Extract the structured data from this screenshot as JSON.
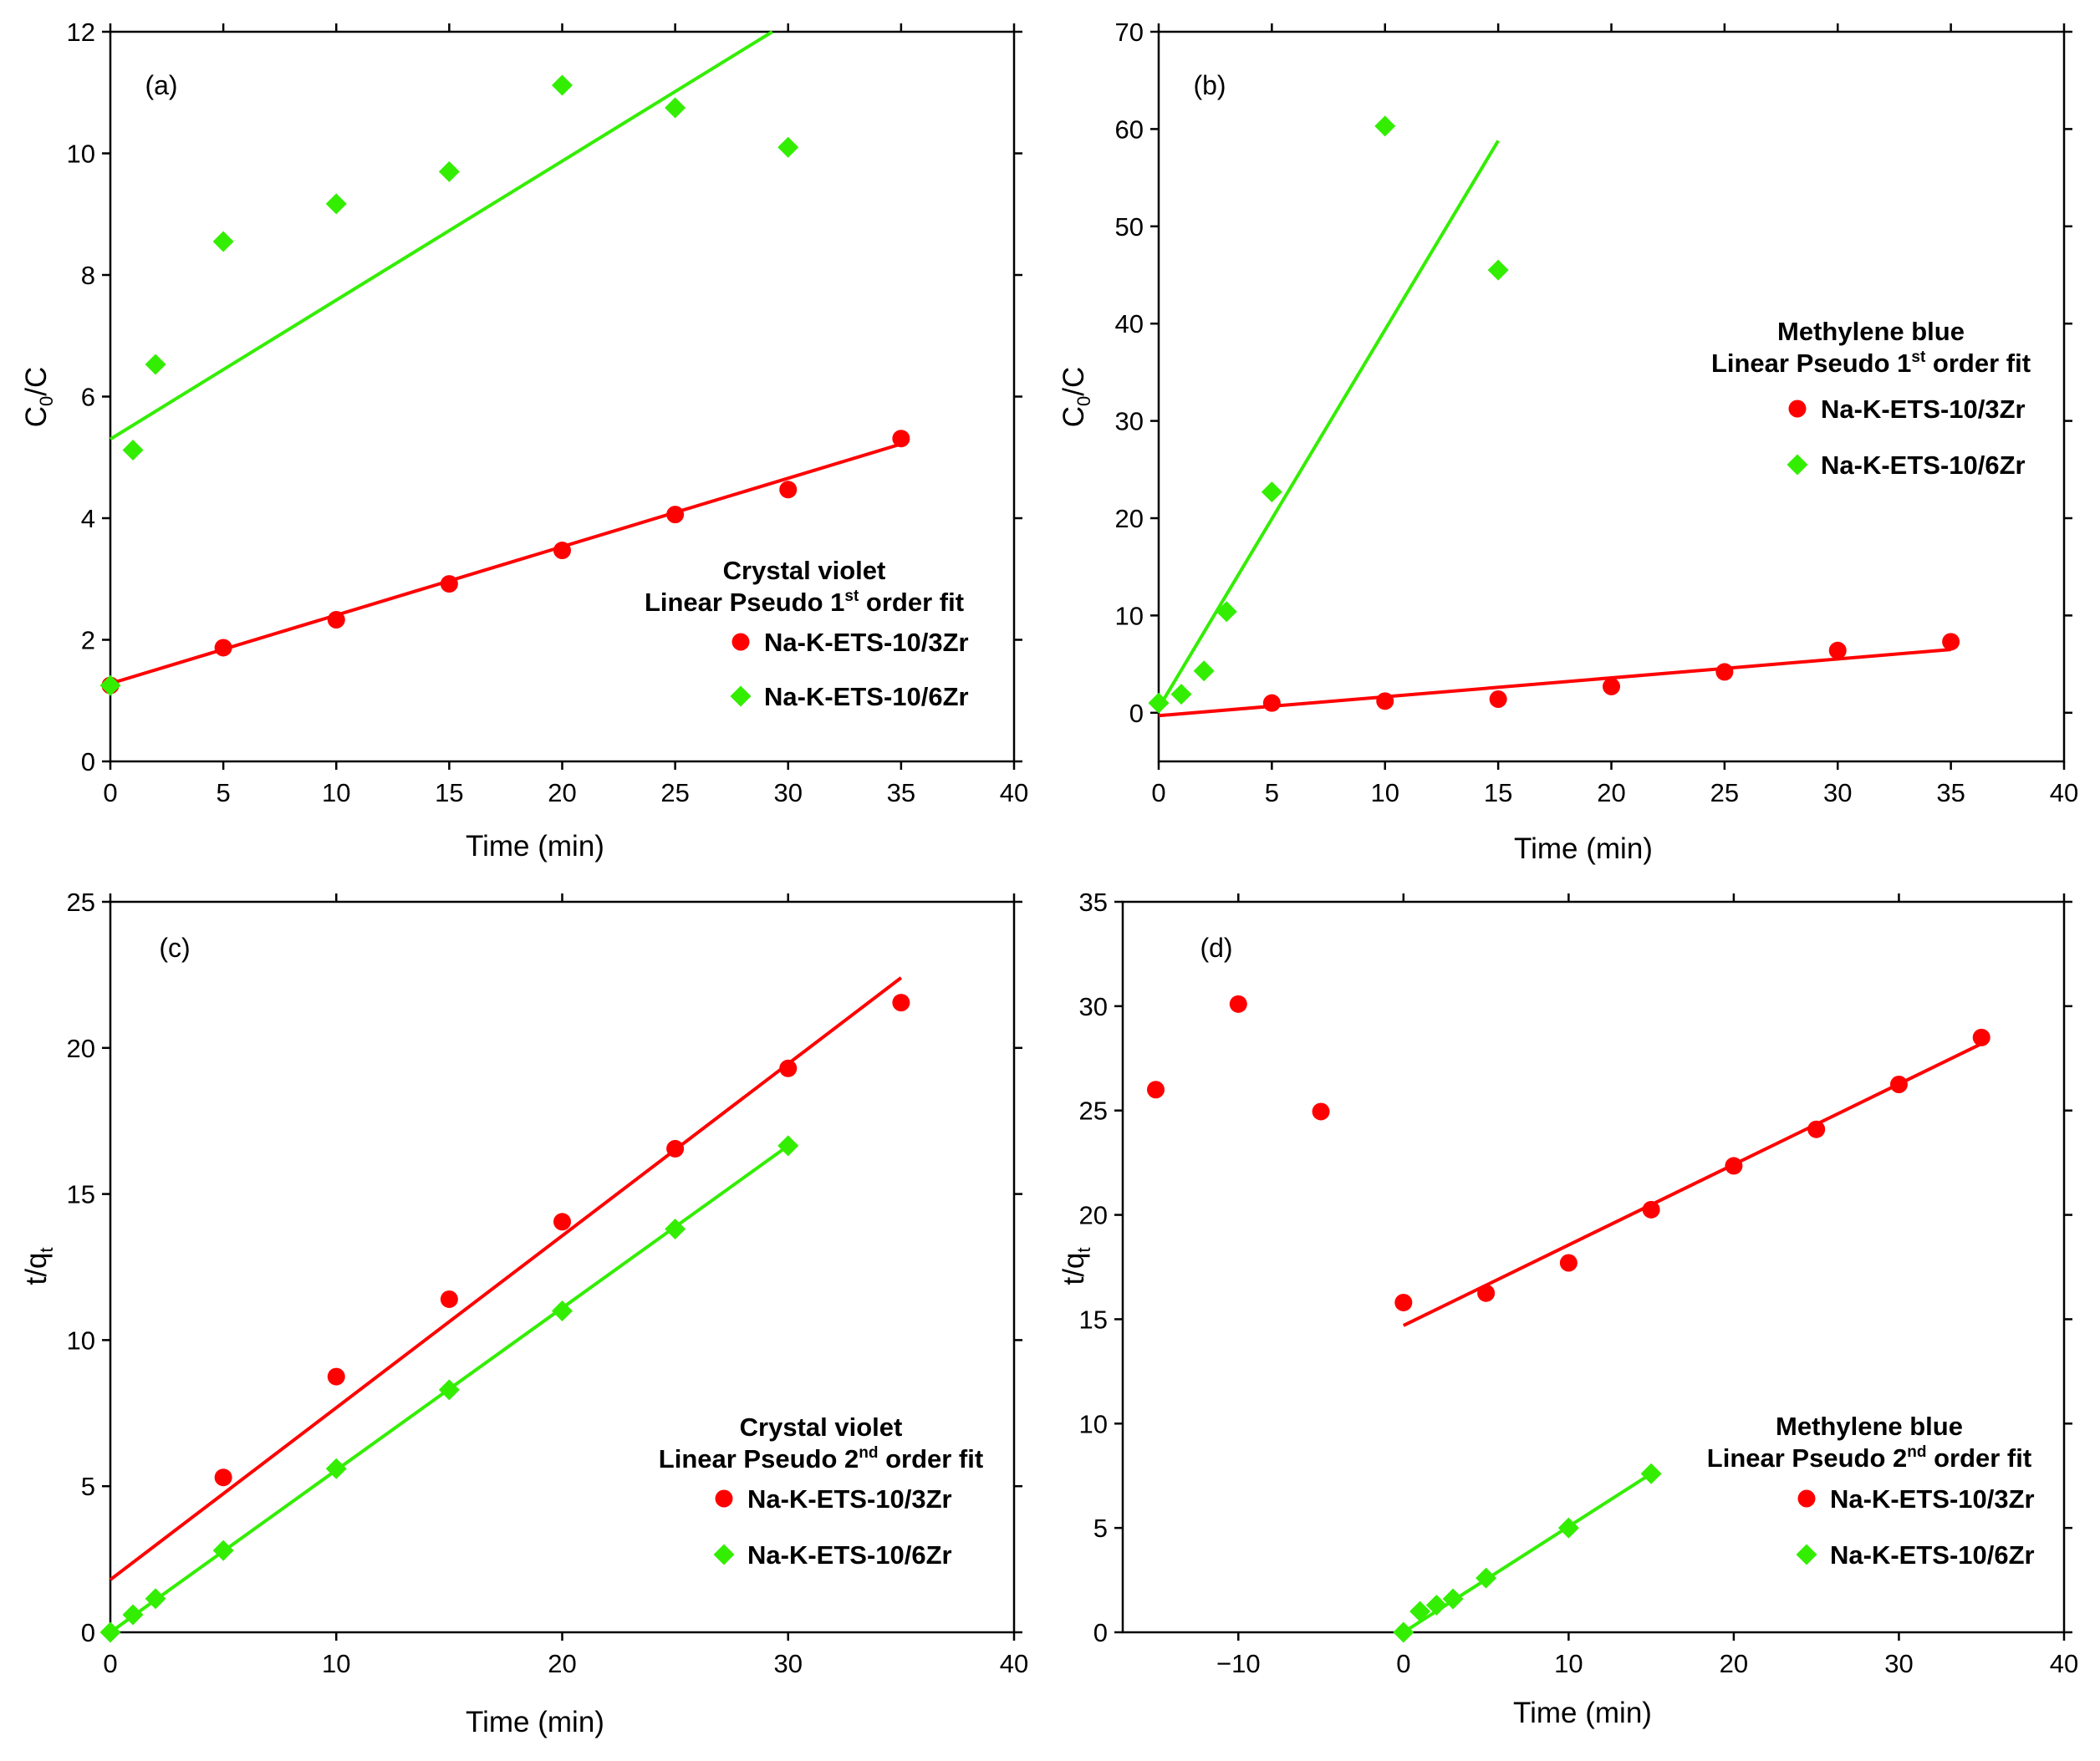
{
  "colors": {
    "red": "#ff0000",
    "green": "#33ee00"
  },
  "chart_data": [
    {
      "id": "a",
      "type": "scatter",
      "panel_label": "(a)",
      "xlabel": "Time (min)",
      "ylabel": {
        "main": "C",
        "sub": "0",
        "rest": "/C"
      },
      "xlim": [
        0,
        40
      ],
      "ylim": [
        0,
        12
      ],
      "xticks": [
        0,
        5,
        10,
        15,
        20,
        25,
        30,
        35,
        40
      ],
      "yticks": [
        0,
        2,
        4,
        6,
        8,
        10,
        12
      ],
      "legend": {
        "position": "bottom-right",
        "title_line1": "Crystal violet",
        "title_line2": {
          "before": "Linear Pseudo 1",
          "sup": "st",
          "after": " order fit"
        }
      },
      "series": [
        {
          "name": "Na-K-ETS-10/3Zr",
          "marker": "circle",
          "color": "red",
          "x": [
            0,
            5,
            10,
            15,
            20,
            25,
            30,
            35
          ],
          "y": [
            1.25,
            1.87,
            2.33,
            2.92,
            3.47,
            4.06,
            4.47,
            5.31
          ],
          "fit": {
            "x": [
              0,
              35
            ],
            "y": [
              1.28,
              5.22
            ]
          }
        },
        {
          "name": "Na-K-ETS-10/6Zr",
          "marker": "diamond",
          "color": "green",
          "x": [
            0,
            1,
            2,
            5,
            10,
            15,
            20,
            25,
            30
          ],
          "y": [
            1.25,
            5.12,
            6.53,
            8.55,
            9.17,
            9.7,
            11.12,
            10.75,
            10.1
          ],
          "fit": {
            "x": [
              0,
              29.3
            ],
            "y": [
              5.3,
              12.0
            ]
          }
        }
      ]
    },
    {
      "id": "b",
      "type": "scatter",
      "panel_label": "(b)",
      "xlabel": "Time (min)",
      "ylabel": {
        "main": "C",
        "sub": "0",
        "rest": "/C"
      },
      "xlim": [
        0,
        40
      ],
      "ylim": [
        -5,
        70
      ],
      "xticks": [
        0,
        5,
        10,
        15,
        20,
        25,
        30,
        35,
        40
      ],
      "yticks": [
        0,
        10,
        20,
        30,
        40,
        50,
        60,
        70
      ],
      "legend": {
        "position": "right",
        "title_line1": "Methylene blue",
        "title_line2": {
          "before": "Linear Pseudo 1",
          "sup": "st",
          "after": " order fit"
        }
      },
      "series": [
        {
          "name": "Na-K-ETS-10/3Zr",
          "marker": "circle",
          "color": "red",
          "x": [
            5,
            10,
            15,
            20,
            25,
            30,
            35
          ],
          "y": [
            1.0,
            1.2,
            1.4,
            2.7,
            4.2,
            6.4,
            7.3
          ],
          "fit": {
            "x": [
              0,
              35
            ],
            "y": [
              -0.3,
              6.5
            ]
          }
        },
        {
          "name": "Na-K-ETS-10/6Zr",
          "marker": "diamond",
          "color": "green",
          "x": [
            0,
            1,
            2,
            3,
            5,
            10,
            15
          ],
          "y": [
            1.0,
            1.9,
            4.3,
            10.4,
            22.7,
            60.3,
            45.5
          ],
          "fit": {
            "x": [
              0,
              15
            ],
            "y": [
              0.5,
              58.8
            ]
          }
        }
      ]
    },
    {
      "id": "c",
      "type": "scatter",
      "panel_label": "(c)",
      "xlabel": "Time (min)",
      "ylabel": {
        "main": "t/q",
        "sub": "t",
        "rest": ""
      },
      "xlim": [
        0,
        40
      ],
      "ylim": [
        0,
        25
      ],
      "xticks": [
        0,
        10,
        20,
        30,
        40
      ],
      "yticks": [
        0,
        5,
        10,
        15,
        20,
        25
      ],
      "legend": {
        "position": "bottom-right",
        "title_line1": "Crystal violet",
        "title_line2": {
          "before": "Linear Pseudo 2",
          "sup": "nd",
          "after": " order fit"
        }
      },
      "series": [
        {
          "name": "Na-K-ETS-10/3Zr",
          "marker": "circle",
          "color": "red",
          "x": [
            5,
            10,
            15,
            20,
            25,
            30,
            35
          ],
          "y": [
            5.3,
            8.75,
            11.4,
            14.05,
            16.55,
            19.3,
            21.55
          ],
          "fit": {
            "x": [
              0,
              35
            ],
            "y": [
              1.8,
              22.4
            ]
          }
        },
        {
          "name": "Na-K-ETS-10/6Zr",
          "marker": "diamond",
          "color": "green",
          "x": [
            0,
            1,
            2,
            5,
            10,
            15,
            20,
            25,
            30
          ],
          "y": [
            0.0,
            0.6,
            1.15,
            2.8,
            5.6,
            8.3,
            11.0,
            13.8,
            16.65
          ],
          "fit": {
            "x": [
              0,
              30
            ],
            "y": [
              0.0,
              16.65
            ]
          }
        }
      ]
    },
    {
      "id": "d",
      "type": "scatter",
      "panel_label": "(d)",
      "xlabel": "Time (min)",
      "ylabel": {
        "main": "t/q",
        "sub": "t",
        "rest": ""
      },
      "xlim": [
        -17,
        40
      ],
      "ylim": [
        0,
        35
      ],
      "xticks": [
        -10,
        0,
        10,
        20,
        30,
        40
      ],
      "tick_labels_x": [
        "−10",
        "0",
        "10",
        "20",
        "30",
        "40"
      ],
      "yticks": [
        0,
        5,
        10,
        15,
        20,
        25,
        30,
        35
      ],
      "legend": {
        "position": "bottom-right",
        "title_line1": "Methylene blue",
        "title_line2": {
          "before": "Linear Pseudo 2",
          "sup": "nd",
          "after": " order fit"
        }
      },
      "series": [
        {
          "name": "Na-K-ETS-10/3Zr",
          "marker": "circle",
          "color": "red",
          "x": [
            -15,
            -10,
            -5,
            0,
            5,
            10,
            15,
            20,
            25,
            30,
            35
          ],
          "y": [
            26.0,
            30.1,
            24.95,
            15.8,
            16.25,
            17.7,
            20.25,
            22.35,
            24.1,
            26.25,
            28.5
          ],
          "fit": {
            "x": [
              0,
              35
            ],
            "y": [
              14.7,
              28.2
            ]
          }
        },
        {
          "name": "Na-K-ETS-10/6Zr",
          "marker": "diamond",
          "color": "green",
          "x": [
            0,
            1,
            2,
            3,
            5,
            10,
            15
          ],
          "y": [
            0.0,
            1.0,
            1.3,
            1.6,
            2.6,
            5.0,
            7.6
          ],
          "fit": {
            "x": [
              0,
              15
            ],
            "y": [
              0.0,
              7.6
            ]
          }
        }
      ]
    }
  ]
}
